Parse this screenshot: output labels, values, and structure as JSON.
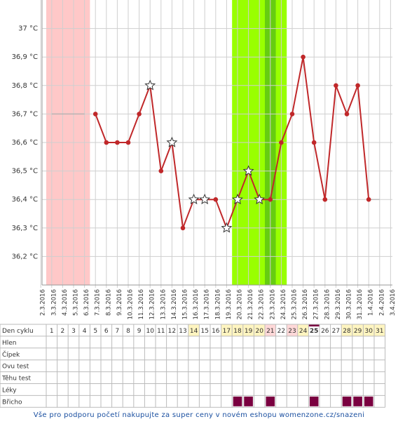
{
  "chart_data": {
    "type": "line",
    "categories": [
      "2.3.2016",
      "3.3.2016",
      "4.3.2016",
      "5.3.2016",
      "6.3.2016",
      "7.3.2016",
      "8.3.2016",
      "9.3.2016",
      "10.3.2016",
      "11.3.2016",
      "12.3.2016",
      "13.3.2016",
      "14.3.2016",
      "15.3.2016",
      "16.3.2016",
      "17.3.2016",
      "18.3.2016",
      "19.3.2016",
      "20.3.2016",
      "21.3.2016",
      "22.3.2016",
      "23.3.2016",
      "24.3.2016",
      "25.3.2016",
      "26.3.2016",
      "27.3.2016",
      "28.3.2016",
      "29.3.2016",
      "30.3.2016",
      "31.3.2016",
      "1.4.2016",
      "2.4.2016",
      "3.4.2016"
    ],
    "series": [
      {
        "color": "#b0b0b0",
        "values": [
          null,
          36.7,
          36.7,
          36.7,
          36.7,
          null,
          null,
          null,
          null,
          null,
          null,
          null,
          null,
          null,
          null,
          null,
          null,
          null,
          null,
          null,
          null,
          null,
          null,
          null,
          null,
          null,
          null,
          null,
          null,
          null,
          36.4,
          36.4,
          null
        ]
      },
      {
        "color": "#c0282a",
        "markers": [
          null,
          null,
          null,
          null,
          null,
          "circle",
          "circle",
          "circle",
          "circle",
          "circle",
          "star",
          "circle",
          "star",
          "circle",
          "star",
          "star",
          "circle",
          "star",
          "star",
          "star",
          "star",
          "circle",
          "circle",
          "circle",
          "circle",
          "circle",
          "circle",
          "circle",
          "circle",
          "circle",
          "circle",
          null,
          null
        ],
        "values": [
          null,
          null,
          null,
          null,
          null,
          36.7,
          36.6,
          36.6,
          36.6,
          36.7,
          36.8,
          36.5,
          36.6,
          36.3,
          36.4,
          36.4,
          36.4,
          36.3,
          36.4,
          36.5,
          36.4,
          36.4,
          36.6,
          36.7,
          36.9,
          36.6,
          36.4,
          36.8,
          36.7,
          36.8,
          36.4,
          null,
          null
        ]
      }
    ],
    "bands": [
      {
        "from": 1,
        "to": 4,
        "color": "#ffc8c8"
      },
      {
        "from": 18,
        "to": 22,
        "color": "#99ff00"
      },
      {
        "from": 21,
        "to": 21,
        "color": "#66cc11"
      }
    ],
    "ylim": [
      36.1,
      37.1
    ],
    "yticks": [
      {
        "value": 36.2,
        "label": "36,2 °C"
      },
      {
        "value": 36.3,
        "label": "36,3 °C"
      },
      {
        "value": 36.4,
        "label": "36,4 °C"
      },
      {
        "value": 36.5,
        "label": "36,5 °C"
      },
      {
        "value": 36.6,
        "label": "36,6 °C"
      },
      {
        "value": 36.7,
        "label": "36,7 °C"
      },
      {
        "value": 36.8,
        "label": "36,8 °C"
      },
      {
        "value": 36.9,
        "label": "36,9 °C"
      },
      {
        "value": 37,
        "label": "37 °C"
      }
    ],
    "grid": true
  },
  "table": {
    "header": "Den cyklu",
    "days": [
      1,
      2,
      3,
      4,
      5,
      6,
      7,
      8,
      9,
      10,
      11,
      12,
      13,
      14,
      15,
      16,
      17,
      18,
      19,
      20,
      21,
      22,
      23,
      24,
      25,
      26,
      27,
      28,
      29,
      30,
      31
    ],
    "day_colors": [
      null,
      null,
      null,
      null,
      null,
      null,
      null,
      null,
      null,
      null,
      null,
      null,
      null,
      "#fff5c0",
      null,
      null,
      "#fff5c0",
      "#fff5c0",
      "#fff5c0",
      "#fff5c0",
      "#ffd8d8",
      null,
      "#ffd8d8",
      "#fff5c0",
      null,
      null,
      null,
      "#fff5c0",
      "#fff5c0",
      "#fff5c0",
      "#fff5c0"
    ],
    "today": 25,
    "mark_color": "#7a0040",
    "rows": [
      {
        "label": "Hlen",
        "marked": []
      },
      {
        "label": "Čípek",
        "marked": []
      },
      {
        "label": "Ovu test",
        "marked": []
      },
      {
        "label": "Těhu test",
        "marked": []
      },
      {
        "label": "Léky",
        "marked": []
      },
      {
        "label": "Břicho",
        "marked": [
          18,
          19,
          21,
          25,
          28,
          29,
          30
        ]
      }
    ]
  },
  "footer": "Vše pro podporu početí nakupujte za super ceny v novém eshopu womenzone.cz/snazeni"
}
